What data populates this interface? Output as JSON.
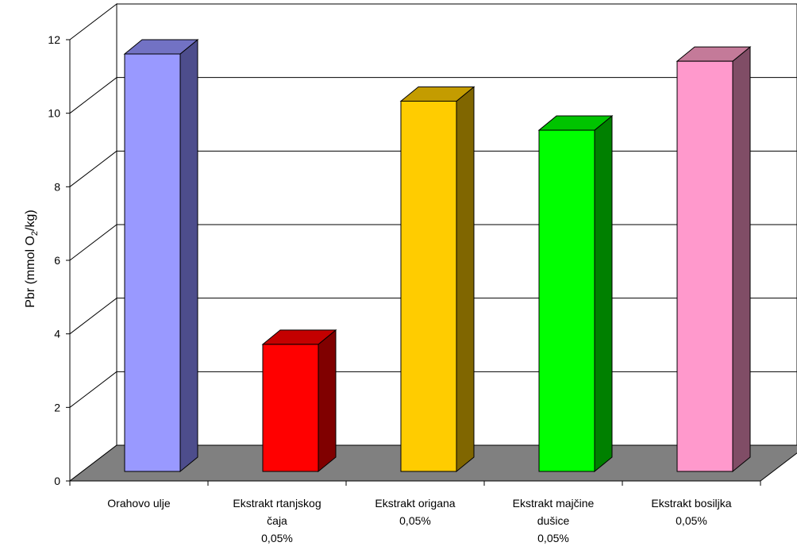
{
  "chart_data": {
    "type": "bar",
    "title": "",
    "xlabel": "",
    "ylabel": {
      "prefix": "Pbr (mmol O",
      "subscript": "2",
      "suffix": "/kg)"
    },
    "ylim": [
      0,
      12
    ],
    "yticks": [
      "0",
      "2",
      "4",
      "6",
      "8",
      "10",
      "12"
    ],
    "grid": true,
    "legend": "none",
    "style": "3d-column",
    "categories": [
      [
        "Orahovo ulje"
      ],
      [
        "Ekstrakt rtanjskog",
        "čaja",
        "0,05%"
      ],
      [
        "Ekstrakt origana",
        "0,05%"
      ],
      [
        "Ekstrakt majčine",
        "dušice",
        "0,05%"
      ],
      [
        "Ekstrakt bosiljka",
        "0,05%"
      ]
    ],
    "values": [
      11.5,
      3.5,
      10.2,
      9.4,
      11.3
    ],
    "colors": [
      {
        "front": "#9999ff",
        "side": "#4d4d8c",
        "top": "#7272c4"
      },
      {
        "front": "#ff0000",
        "side": "#800000",
        "top": "#c40000"
      },
      {
        "front": "#ffcc00",
        "side": "#806600",
        "top": "#c49c00"
      },
      {
        "front": "#00ff00",
        "side": "#008000",
        "top": "#00c400"
      },
      {
        "front": "#ff99cc",
        "side": "#804d66",
        "top": "#c47a99"
      }
    ],
    "floor_color": "#808080"
  }
}
